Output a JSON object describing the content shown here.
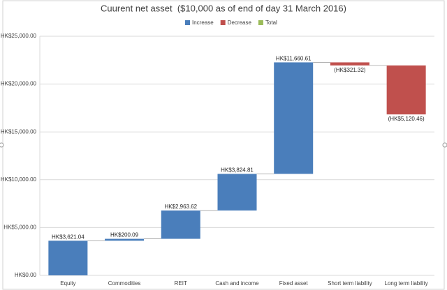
{
  "chart_data": {
    "type": "waterfall",
    "title": "Cuurent net asset  ($10,000 as of end of day 31 March 2016)",
    "legend": [
      {
        "name": "Increase",
        "color": "#4a7ebb"
      },
      {
        "name": "Decrease",
        "color": "#c0504d"
      },
      {
        "name": "Total",
        "color": "#9bbb59"
      }
    ],
    "categories": [
      "Equity",
      "Commodities",
      "REIT",
      "Cash and income",
      "Fixed asset",
      "Short term liability",
      "Long term liability"
    ],
    "values": [
      3621.04,
      200.09,
      2963.62,
      3824.81,
      11660.61,
      -321.32,
      -5120.46
    ],
    "value_labels": [
      "HK$3,621.04",
      "HK$200.09",
      "HK$2,963.62",
      "HK$3,824.81",
      "HK$11,660.61",
      "(HK$321.32)",
      "(HK$5,120.46)"
    ],
    "ylim": [
      0,
      25000
    ],
    "yticks": [
      {
        "value": 0,
        "label": "HK$0.00"
      },
      {
        "value": 5000,
        "label": "HK$5,000.00"
      },
      {
        "value": 10000,
        "label": "HK$10,000.00"
      },
      {
        "value": 15000,
        "label": "HK$15,000.00"
      },
      {
        "value": 20000,
        "label": "HK$20,000.00"
      },
      {
        "value": 25000,
        "label": "HK$25,000.00"
      }
    ],
    "grid": true
  }
}
